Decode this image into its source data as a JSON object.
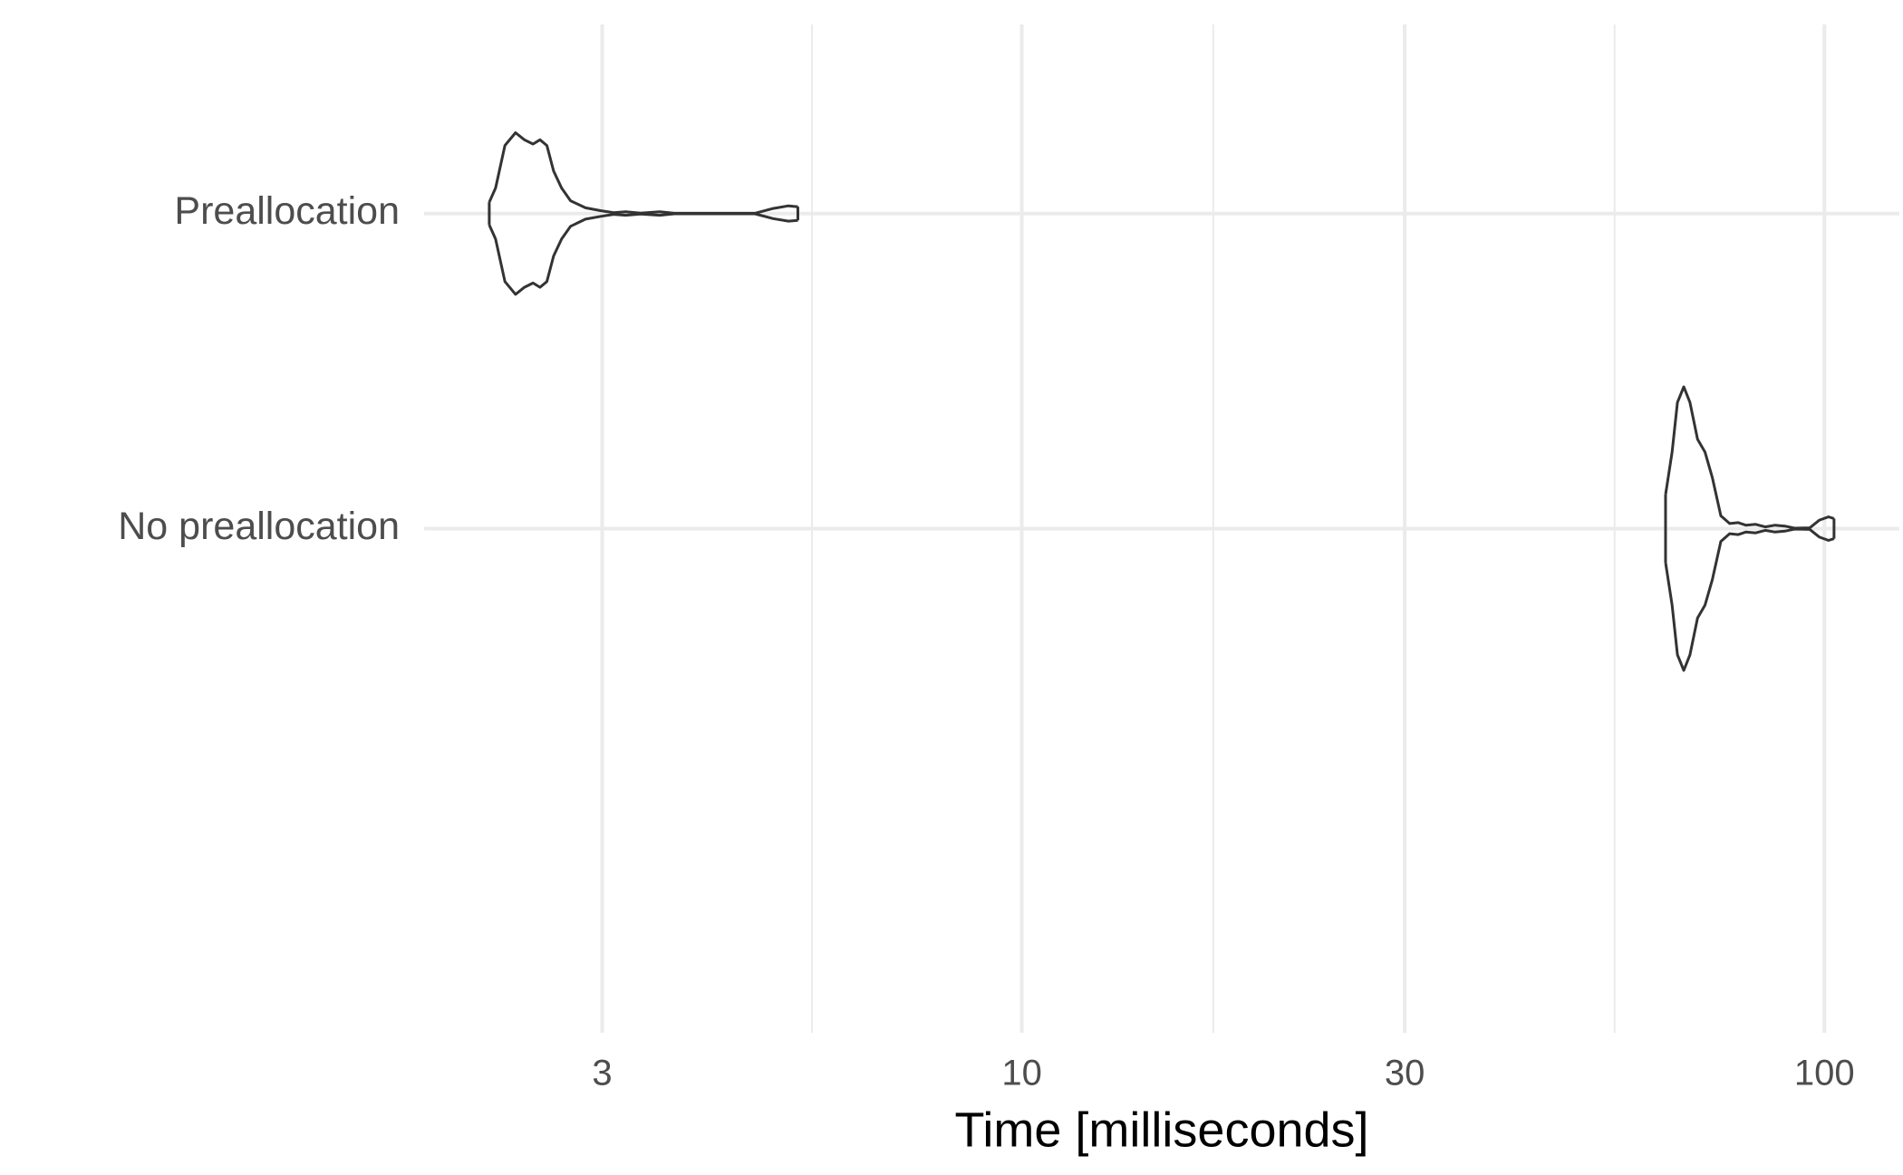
{
  "chart_data": {
    "type": "violin",
    "orientation": "horizontal",
    "x_label": "Time [milliseconds]",
    "categories": [
      "Preallocation",
      "No preallocation"
    ],
    "series": [
      {
        "name": "Preallocation",
        "color": "#333333",
        "x": [
          2.17,
          2.21,
          2.27,
          2.34,
          2.4,
          2.46,
          2.51,
          2.56,
          2.61,
          2.67,
          2.74,
          2.86,
          2.99,
          3.1,
          3.21,
          3.35,
          3.54,
          3.69,
          4.65,
          4.9,
          5.12,
          5.26
        ],
        "density": [
          0.08,
          0.18,
          0.48,
          0.57,
          0.52,
          0.49,
          0.52,
          0.48,
          0.3,
          0.18,
          0.09,
          0.04,
          0.02,
          0.006,
          0.012,
          0.003,
          0.012,
          0.002,
          0.002,
          0.036,
          0.054,
          0.048
        ]
      },
      {
        "name": "No preallocation",
        "color": "#333333",
        "x": [
          63.4,
          64.6,
          65.6,
          66.8,
          68.0,
          69.5,
          71.0,
          72.5,
          74.3,
          76.2,
          78.1,
          79.8,
          82.1,
          84.4,
          86.8,
          89.3,
          91.8,
          95.9,
          98.6,
          101.2,
          102.8
        ],
        "density": [
          0.24,
          0.54,
          0.89,
          1.0,
          0.89,
          0.63,
          0.54,
          0.36,
          0.09,
          0.036,
          0.042,
          0.024,
          0.03,
          0.012,
          0.024,
          0.018,
          0.003,
          0.006,
          0.06,
          0.083,
          0.071
        ]
      }
    ],
    "xscale": "log",
    "xlim": [
      1.8,
      124
    ],
    "xticks": [
      3,
      10,
      30,
      100
    ],
    "grid": true
  }
}
